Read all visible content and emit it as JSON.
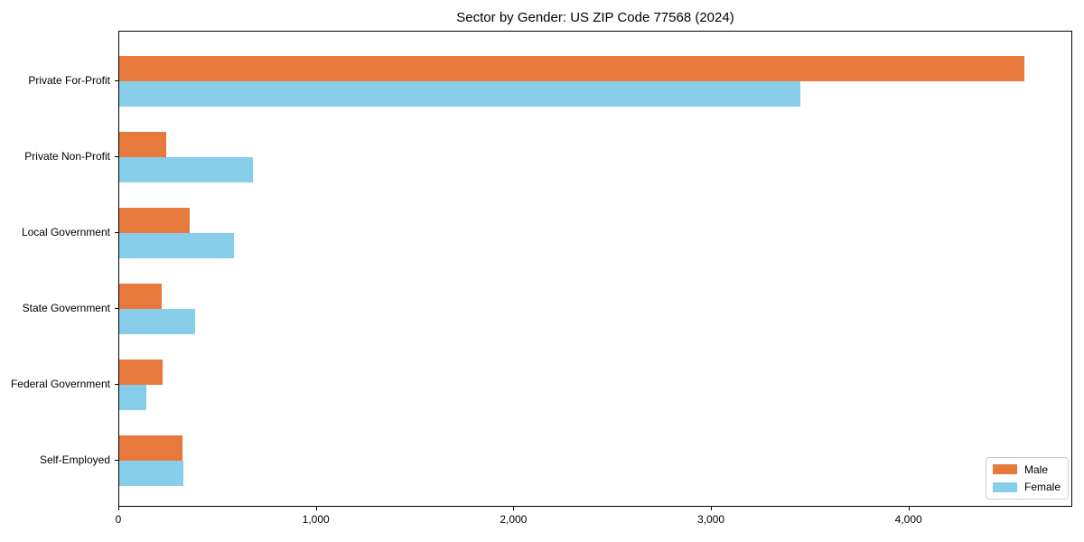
{
  "chart_data": {
    "type": "bar",
    "orientation": "horizontal",
    "title": "Sector by Gender: US ZIP Code 77568 (2024)",
    "categories": [
      "Private For-Profit",
      "Private Non-Profit",
      "Local Government",
      "State Government",
      "Federal Government",
      "Self-Employed"
    ],
    "series": [
      {
        "name": "Male",
        "color": "#E8793D",
        "values": [
          4580,
          240,
          355,
          215,
          220,
          320
        ]
      },
      {
        "name": "Female",
        "color": "#87CEEB",
        "values": [
          3450,
          675,
          580,
          385,
          135,
          325
        ]
      }
    ],
    "xlabel": "",
    "ylabel": "",
    "xlim": [
      0,
      4820
    ],
    "xticks": [
      0,
      1000,
      2000,
      3000,
      4000
    ],
    "xtick_labels": [
      "0",
      "1,000",
      "2,000",
      "3,000",
      "4,000"
    ],
    "grid": false,
    "legend": {
      "position": "lower right",
      "entries": [
        "Male",
        "Female"
      ]
    }
  }
}
